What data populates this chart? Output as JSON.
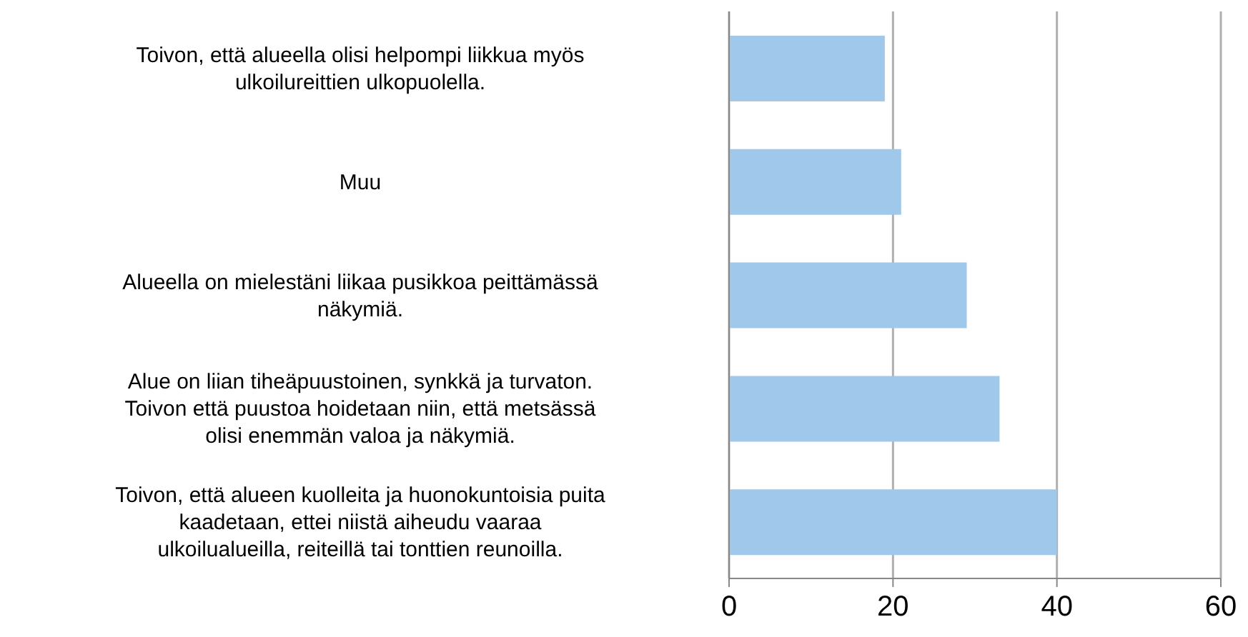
{
  "chart_data": {
    "type": "bar",
    "orientation": "horizontal",
    "categories": [
      "Toivon, että alueella olisi helpompi liikkua myös ulkoilureittien ulkopuolella.",
      "Muu",
      "Alueella on mielestäni liikaa pusikkoa peittämässä näkymiä.",
      "Alue on liian tiheäpuustoinen, synkkä ja turvaton. Toivon että puustoa hoidetaan niin, että metsässä olisi enemmän valoa ja näkymiä.",
      "Toivon, että alueen kuolleita ja huonokuntoisia puita kaadetaan, ettei niistä aiheudu vaaraa ulkoilualueilla, reiteillä tai tonttien reunoilla."
    ],
    "values": [
      19,
      21,
      29,
      33,
      40
    ],
    "color": "#9fc8ea",
    "xlim": [
      0,
      60
    ],
    "xticks": [
      0,
      20,
      40,
      60
    ],
    "grid": "x"
  }
}
